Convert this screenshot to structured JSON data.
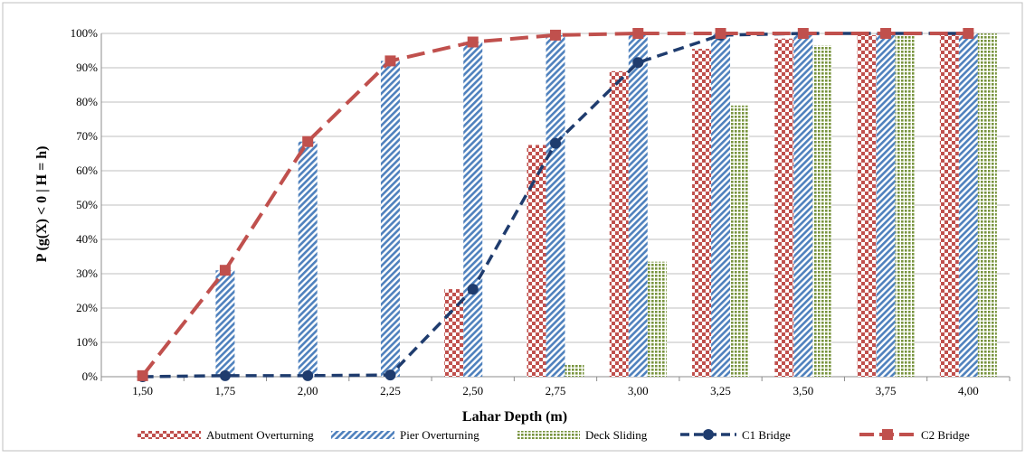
{
  "chart_data": {
    "type": "bar",
    "xlabel": "Lahar Depth (m)",
    "ylabel": "P (g(X) < 0 | H = h)",
    "categories": [
      "1,50",
      "1,75",
      "2,00",
      "2,25",
      "2,50",
      "2,75",
      "3,00",
      "3,25",
      "3,50",
      "3,75",
      "4,00"
    ],
    "ylim": [
      0,
      100
    ],
    "yticks": [
      "0%",
      "10%",
      "20%",
      "30%",
      "40%",
      "50%",
      "60%",
      "70%",
      "80%",
      "90%",
      "100%"
    ],
    "grid": true,
    "legend_position": "bottom",
    "bar_series": [
      {
        "name": "Abutment Overturning",
        "values": [
          0,
          0,
          0,
          0,
          25.5,
          67.5,
          89,
          95.5,
          98.5,
          99.5,
          100
        ],
        "color": "#c0504d"
      },
      {
        "name": "Pier Overturning",
        "values": [
          0,
          31,
          68.5,
          92,
          97.5,
          99.5,
          100,
          100,
          100,
          100,
          100
        ],
        "color": "#4f81bd"
      },
      {
        "name": "Deck Sliding",
        "values": [
          0,
          0,
          0,
          0,
          0,
          3.5,
          33.5,
          79,
          96.5,
          99.5,
          100
        ],
        "color": "#77933c"
      }
    ],
    "line_series": [
      {
        "name": "C1 Bridge",
        "values": [
          0,
          0.3,
          0.3,
          0.5,
          25.5,
          68,
          91.5,
          99.5,
          100,
          100,
          100
        ],
        "color": "#1f3c6e"
      },
      {
        "name": "C2 Bridge",
        "values": [
          0.3,
          31,
          68.5,
          92,
          97.5,
          99.5,
          100,
          100,
          100,
          100,
          100
        ],
        "color": "#c0504d"
      }
    ]
  }
}
